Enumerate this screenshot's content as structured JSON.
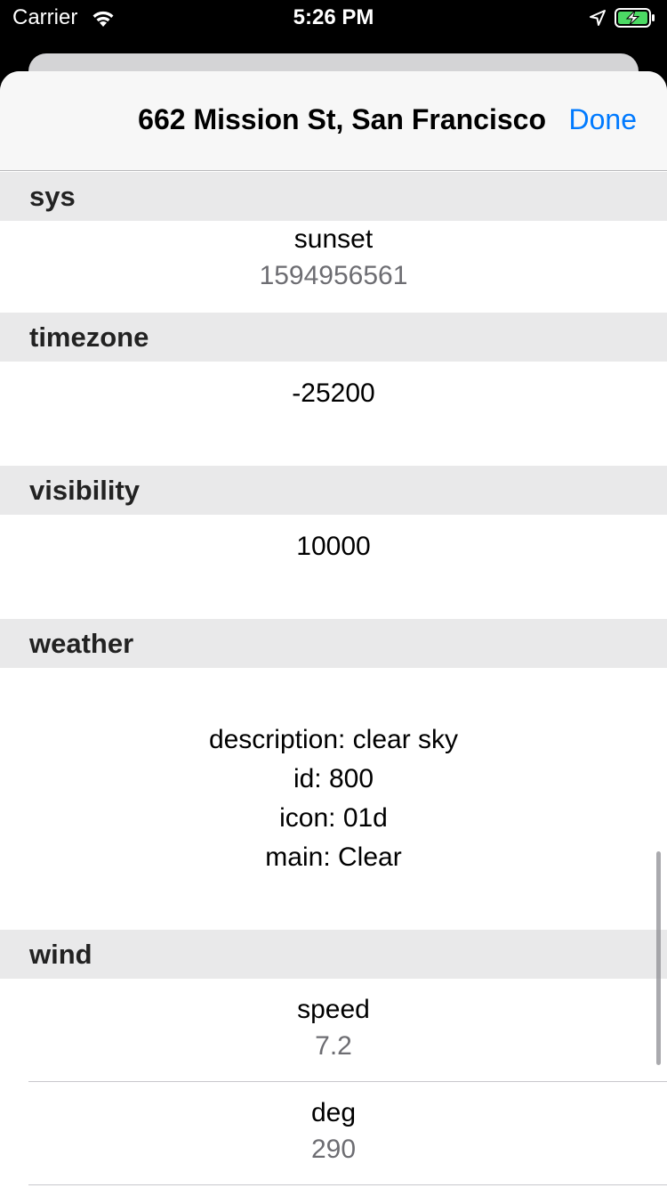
{
  "status_bar": {
    "carrier": "Carrier",
    "time": "5:26 PM",
    "icons": [
      "wifi-icon",
      "location-arrow-icon",
      "battery-charging-icon"
    ]
  },
  "nav": {
    "title": "662 Mission St, San Francisco",
    "done_label": "Done",
    "done_color": "#007aff"
  },
  "sections": {
    "sys": {
      "header": "sys",
      "key": "sunset",
      "value": "1594956561"
    },
    "timezone": {
      "header": "timezone",
      "value": "-25200"
    },
    "visibility": {
      "header": "visibility",
      "value": "10000"
    },
    "weather": {
      "header": "weather",
      "lines": [
        "description: clear sky",
        "id: 800",
        "icon: 01d",
        "main: Clear"
      ]
    },
    "wind": {
      "header": "wind",
      "rows": [
        {
          "key": "speed",
          "value": "7.2"
        },
        {
          "key": "deg",
          "value": "290"
        }
      ]
    }
  },
  "colors": {
    "section_header_bg": "#e9e9ea",
    "value_gray": "#6d6d72",
    "battery_green": "#4cd964"
  }
}
